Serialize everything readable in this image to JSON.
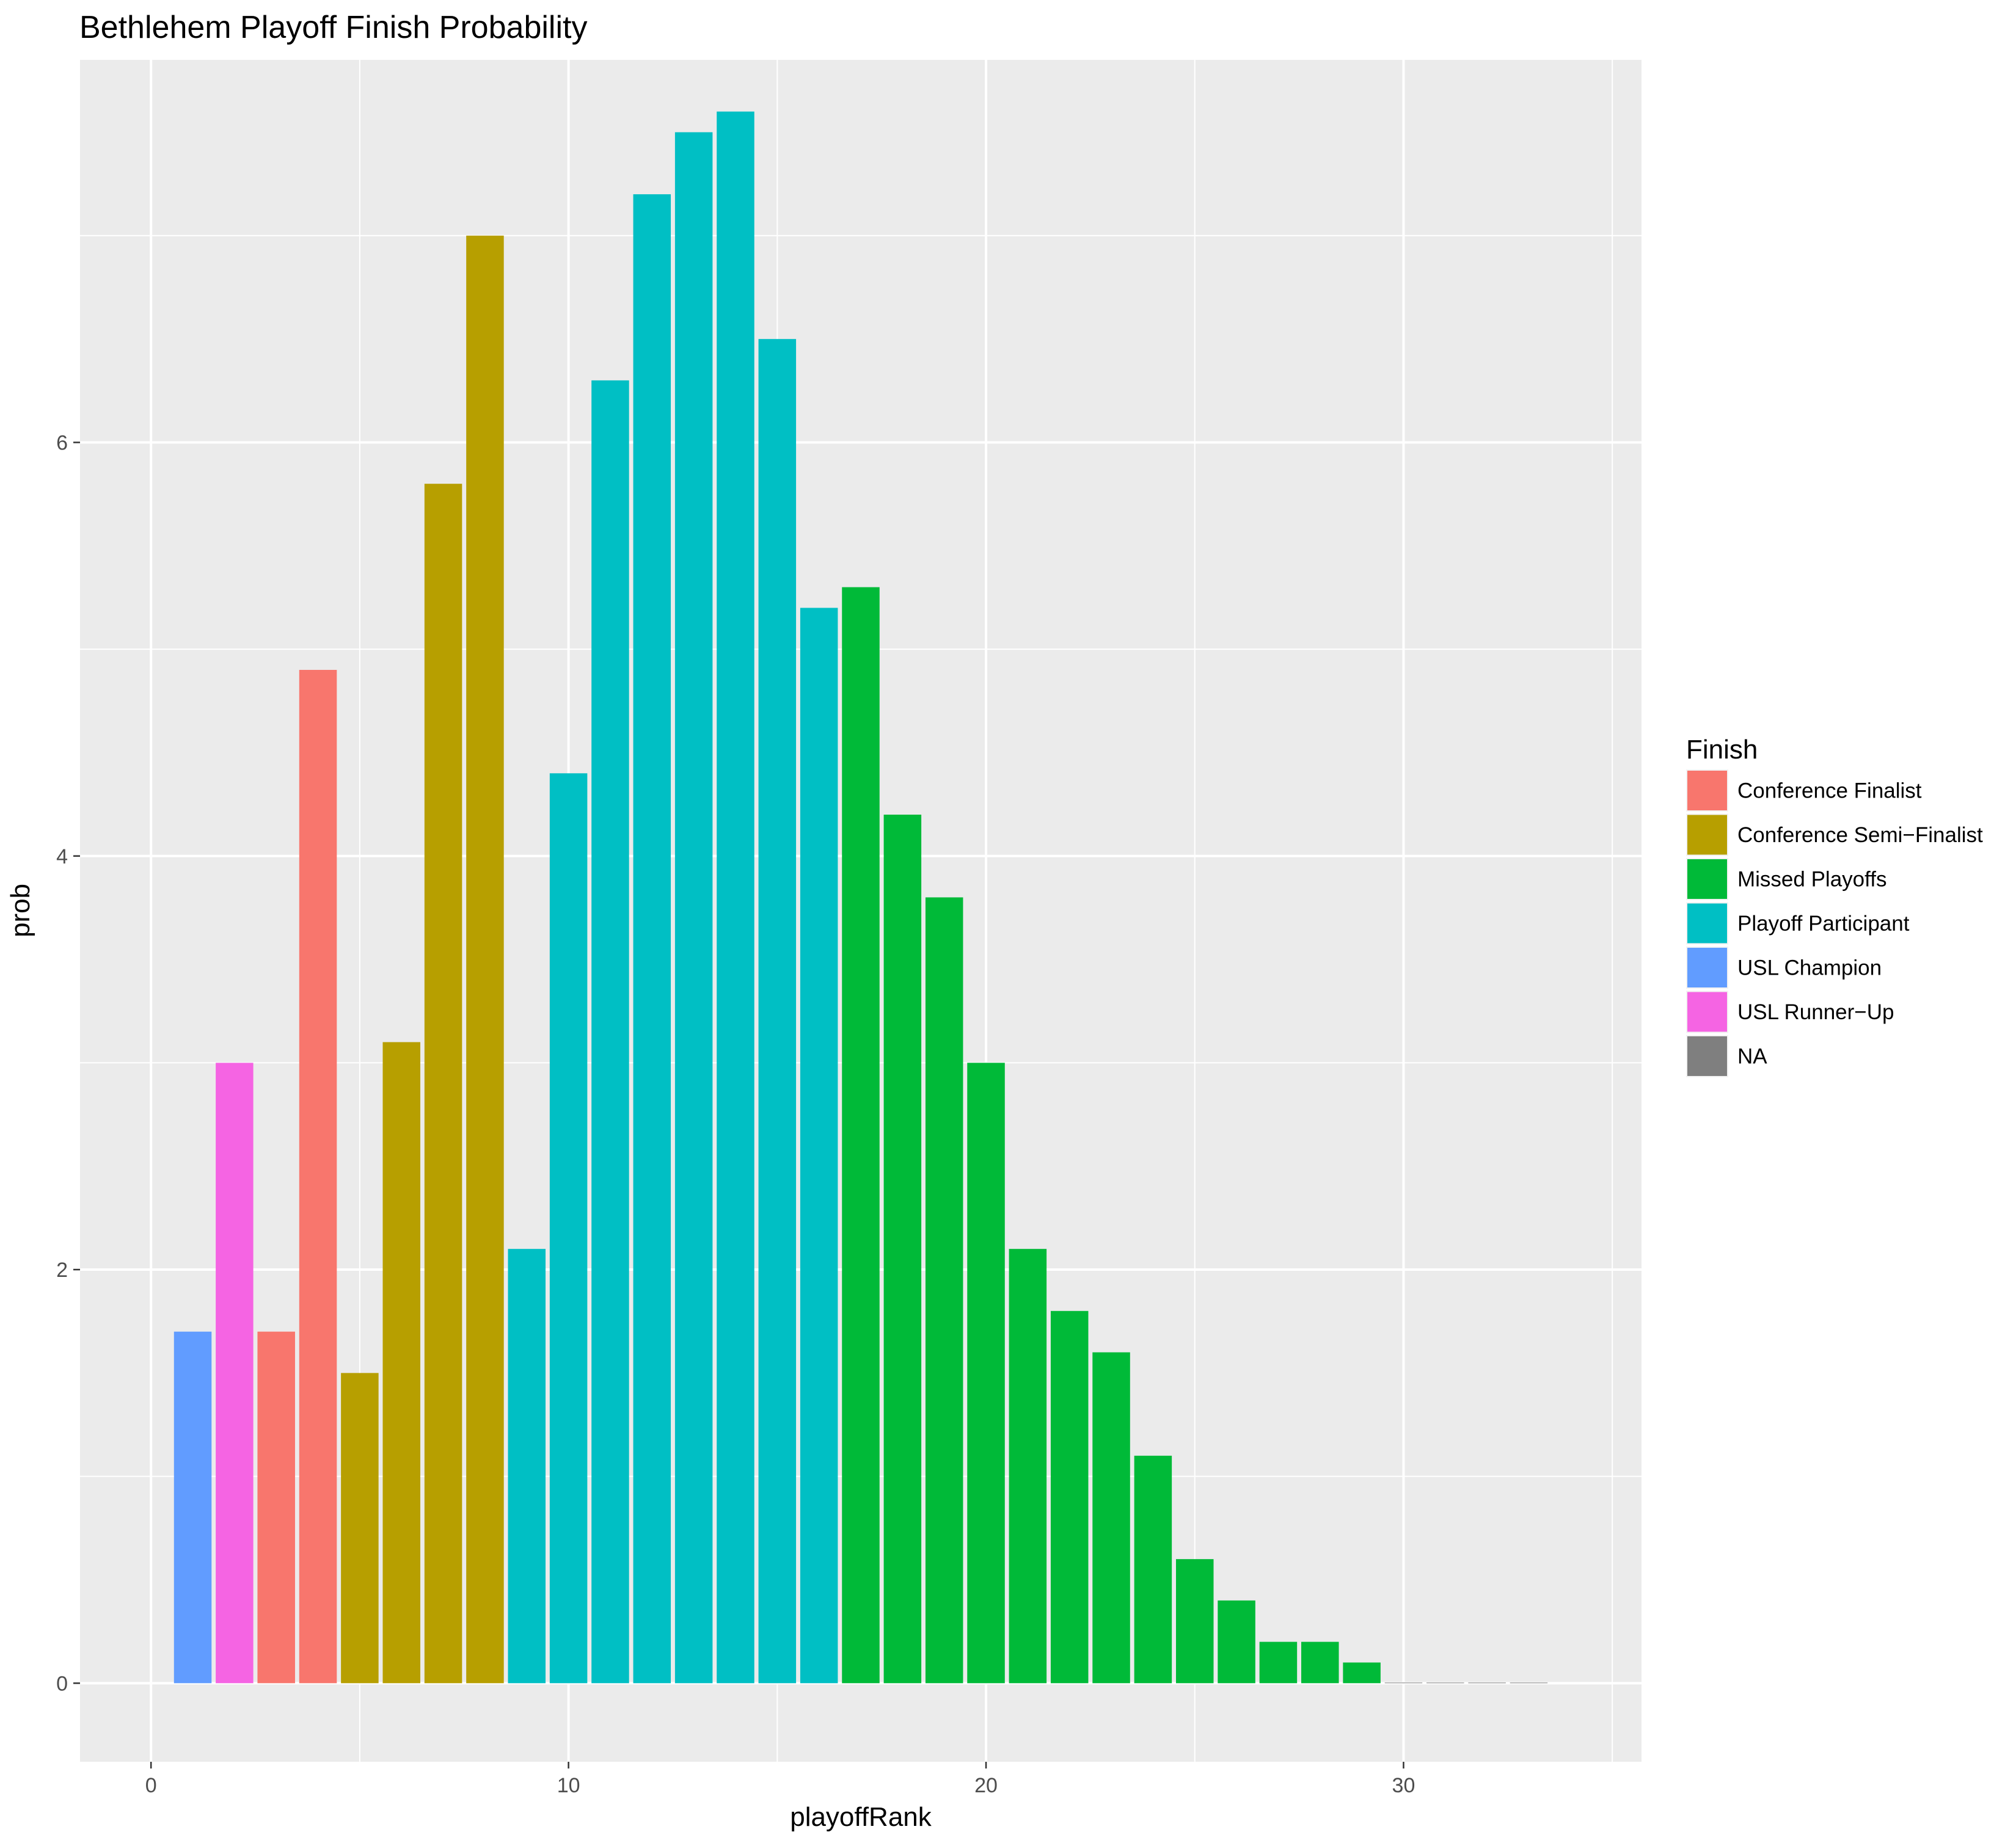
{
  "chart_data": {
    "type": "bar",
    "title": "Bethlehem Playoff Finish Probability",
    "xlabel": "playoffRank",
    "ylabel": "prob",
    "xlim": [
      -1.7,
      35.7
    ],
    "ylim": [
      -0.38,
      7.85
    ],
    "x_ticks": [
      0,
      10,
      20,
      30
    ],
    "y_ticks": [
      0,
      2,
      4,
      6
    ],
    "grid": true,
    "legend_position": "right",
    "legend": {
      "title": "Finish",
      "entries": [
        {
          "label": "Conference Finalist",
          "color": "#F8766D"
        },
        {
          "label": "Conference Semi−Finalist",
          "color": "#B79F00"
        },
        {
          "label": "Missed Playoffs",
          "color": "#00BA38"
        },
        {
          "label": "Playoff Participant",
          "color": "#00BFC4"
        },
        {
          "label": "USL Champion",
          "color": "#619CFF"
        },
        {
          "label": "USL Runner−Up",
          "color": "#F564E3"
        },
        {
          "label": "NA",
          "color": "#7F7F7F"
        }
      ]
    },
    "bars": [
      {
        "x": 1,
        "y": 1.7,
        "finish": "USL Champion"
      },
      {
        "x": 2,
        "y": 3.0,
        "finish": "USL Runner−Up"
      },
      {
        "x": 3,
        "y": 1.7,
        "finish": "Conference Finalist"
      },
      {
        "x": 4,
        "y": 4.9,
        "finish": "Conference Finalist"
      },
      {
        "x": 5,
        "y": 1.5,
        "finish": "Conference Semi−Finalist"
      },
      {
        "x": 6,
        "y": 3.1,
        "finish": "Conference Semi−Finalist"
      },
      {
        "x": 7,
        "y": 5.8,
        "finish": "Conference Semi−Finalist"
      },
      {
        "x": 8,
        "y": 7.0,
        "finish": "Conference Semi−Finalist"
      },
      {
        "x": 9,
        "y": 2.1,
        "finish": "Playoff Participant"
      },
      {
        "x": 10,
        "y": 4.4,
        "finish": "Playoff Participant"
      },
      {
        "x": 11,
        "y": 6.3,
        "finish": "Playoff Participant"
      },
      {
        "x": 12,
        "y": 7.2,
        "finish": "Playoff Participant"
      },
      {
        "x": 13,
        "y": 7.5,
        "finish": "Playoff Participant"
      },
      {
        "x": 14,
        "y": 7.6,
        "finish": "Playoff Participant"
      },
      {
        "x": 15,
        "y": 6.5,
        "finish": "Playoff Participant"
      },
      {
        "x": 16,
        "y": 5.2,
        "finish": "Playoff Participant"
      },
      {
        "x": 17,
        "y": 5.3,
        "finish": "Missed Playoffs"
      },
      {
        "x": 18,
        "y": 4.2,
        "finish": "Missed Playoffs"
      },
      {
        "x": 19,
        "y": 3.8,
        "finish": "Missed Playoffs"
      },
      {
        "x": 20,
        "y": 3.0,
        "finish": "Missed Playoffs"
      },
      {
        "x": 21,
        "y": 2.1,
        "finish": "Missed Playoffs"
      },
      {
        "x": 22,
        "y": 1.8,
        "finish": "Missed Playoffs"
      },
      {
        "x": 23,
        "y": 1.6,
        "finish": "Missed Playoffs"
      },
      {
        "x": 24,
        "y": 1.1,
        "finish": "Missed Playoffs"
      },
      {
        "x": 25,
        "y": 0.6,
        "finish": "Missed Playoffs"
      },
      {
        "x": 26,
        "y": 0.4,
        "finish": "Missed Playoffs"
      },
      {
        "x": 27,
        "y": 0.2,
        "finish": "Missed Playoffs"
      },
      {
        "x": 28,
        "y": 0.2,
        "finish": "Missed Playoffs"
      },
      {
        "x": 29,
        "y": 0.1,
        "finish": "Missed Playoffs"
      },
      {
        "x": 30,
        "y": 0.0,
        "finish": "NA"
      },
      {
        "x": 31,
        "y": 0.0,
        "finish": "NA"
      },
      {
        "x": 32,
        "y": 0.0,
        "finish": "NA"
      },
      {
        "x": 33,
        "y": 0.0,
        "finish": "NA"
      }
    ]
  }
}
